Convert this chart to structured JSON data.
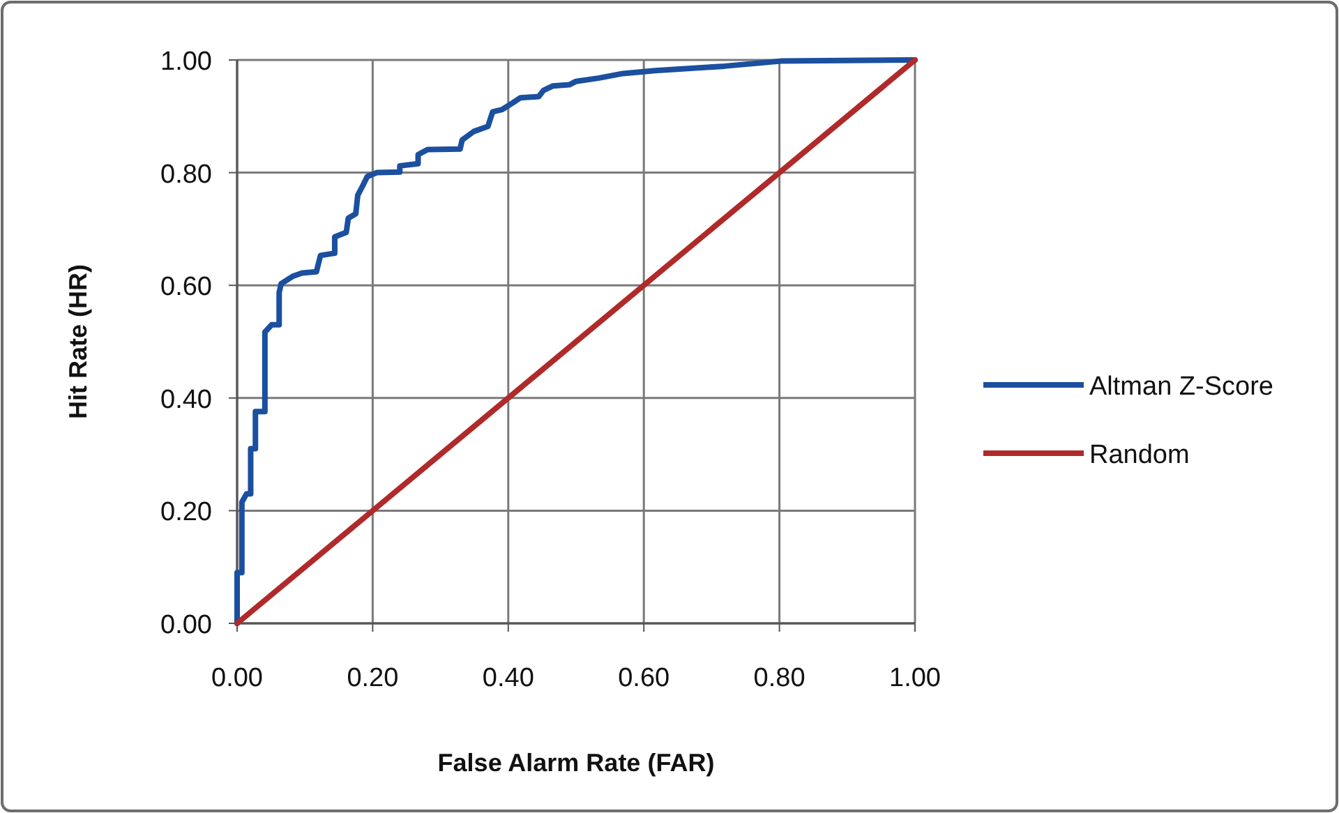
{
  "chart_data": {
    "type": "line",
    "xlabel": "False Alarm Rate (FAR)",
    "ylabel": "Hit Rate (HR)",
    "xlim": [
      0,
      1
    ],
    "ylim": [
      0,
      1
    ],
    "xticks": [
      {
        "value": 0,
        "label": "0.00"
      },
      {
        "value": 0.2,
        "label": "0.20"
      },
      {
        "value": 0.4,
        "label": "0.40"
      },
      {
        "value": 0.6,
        "label": "0.60"
      },
      {
        "value": 0.8,
        "label": "0.80"
      },
      {
        "value": 1,
        "label": "1.00"
      }
    ],
    "yticks": [
      {
        "value": 0,
        "label": "0.00"
      },
      {
        "value": 0.2,
        "label": "0.20"
      },
      {
        "value": 0.4,
        "label": "0.40"
      },
      {
        "value": 0.6,
        "label": "0.60"
      },
      {
        "value": 0.8,
        "label": "0.80"
      },
      {
        "value": 1,
        "label": "1.00"
      }
    ],
    "grid": true,
    "legend": "right",
    "series": [
      {
        "name": "Altman Z-Score",
        "color": "#1b4f9f",
        "x": [
          0,
          0,
          0.007,
          0.007,
          0.014,
          0.02,
          0.02,
          0.027,
          0.027,
          0.041,
          0.041,
          0.051,
          0.062,
          0.062,
          0.065,
          0.082,
          0.096,
          0.117,
          0.123,
          0.144,
          0.144,
          0.161,
          0.164,
          0.175,
          0.178,
          0.185,
          0.192,
          0.206,
          0.24,
          0.24,
          0.267,
          0.267,
          0.281,
          0.329,
          0.332,
          0.349,
          0.37,
          0.377,
          0.391,
          0.408,
          0.418,
          0.445,
          0.452,
          0.466,
          0.49,
          0.5,
          0.534,
          0.569,
          0.617,
          0.719,
          0.802,
          1
        ],
        "values": [
          0,
          0.09,
          0.09,
          0.215,
          0.23,
          0.23,
          0.31,
          0.31,
          0.376,
          0.376,
          0.517,
          0.53,
          0.53,
          0.587,
          0.603,
          0.616,
          0.622,
          0.624,
          0.653,
          0.657,
          0.686,
          0.694,
          0.719,
          0.727,
          0.76,
          0.776,
          0.793,
          0.8,
          0.801,
          0.812,
          0.816,
          0.832,
          0.841,
          0.842,
          0.858,
          0.873,
          0.882,
          0.908,
          0.912,
          0.925,
          0.933,
          0.935,
          0.946,
          0.954,
          0.956,
          0.962,
          0.968,
          0.976,
          0.981,
          0.989,
          0.998,
          1
        ]
      },
      {
        "name": "Random",
        "color": "#b02a2a",
        "x": [
          0,
          1
        ],
        "values": [
          0,
          1
        ]
      }
    ]
  }
}
